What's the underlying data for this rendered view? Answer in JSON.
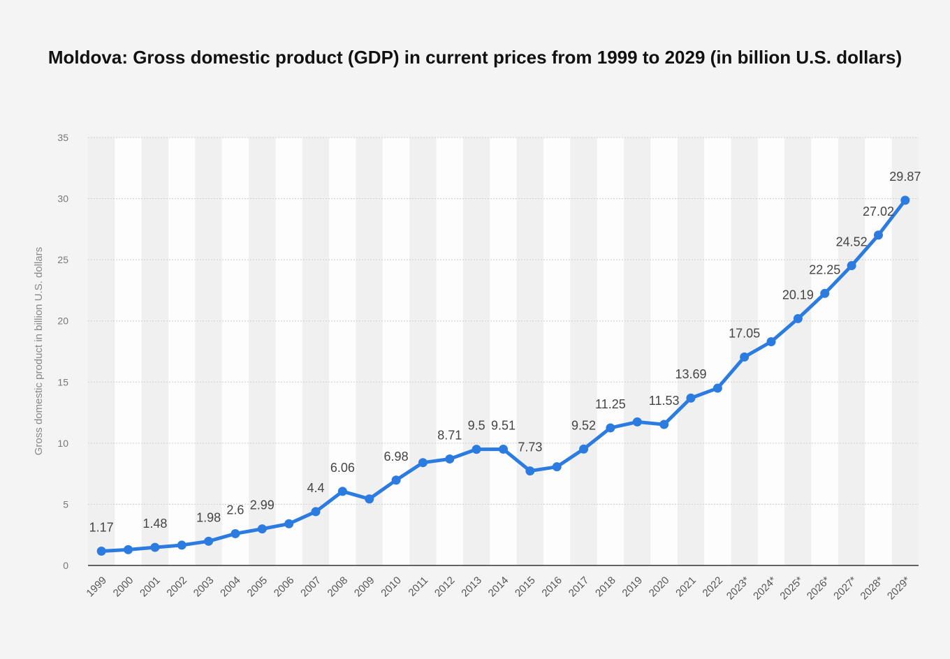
{
  "chart_data": {
    "type": "line",
    "title": "Moldova: Gross domestic product (GDP) in current prices from 1999 to 2029 (in billion U.S. dollars)",
    "xlabel": "",
    "ylabel": "Gross domestic product in billion U.S. dollars",
    "ylim": [
      0,
      35
    ],
    "yticks": [
      0,
      5,
      10,
      15,
      20,
      25,
      30,
      35
    ],
    "grid": true,
    "categories": [
      "1999",
      "2000",
      "2001",
      "2002",
      "2003",
      "2004",
      "2005",
      "2006",
      "2007",
      "2008",
      "2009",
      "2010",
      "2011",
      "2012",
      "2013",
      "2014",
      "2015",
      "2016",
      "2017",
      "2018",
      "2019",
      "2020",
      "2021",
      "2022",
      "2023*",
      "2024*",
      "2025*",
      "2026*",
      "2027*",
      "2028*",
      "2029*"
    ],
    "values": [
      1.17,
      1.29,
      1.48,
      1.66,
      1.98,
      2.6,
      2.99,
      3.41,
      4.4,
      6.06,
      5.44,
      6.98,
      8.41,
      8.71,
      9.5,
      9.51,
      7.73,
      8.07,
      9.52,
      11.25,
      11.74,
      11.53,
      13.69,
      14.5,
      17.05,
      18.3,
      20.19,
      22.25,
      24.52,
      27.02,
      29.87
    ],
    "data_labels": [
      "1.17",
      null,
      "1.48",
      null,
      "1.98",
      "2.6",
      "2.99",
      null,
      "4.4",
      "6.06",
      null,
      "6.98",
      null,
      "8.71",
      "9.5",
      "9.51",
      "7.73",
      null,
      "9.52",
      "11.25",
      null,
      "11.53",
      "13.69",
      null,
      "17.05",
      null,
      "20.19",
      "22.25",
      "24.52",
      "27.02",
      "29.87"
    ],
    "line_color": "#2b7be0"
  }
}
